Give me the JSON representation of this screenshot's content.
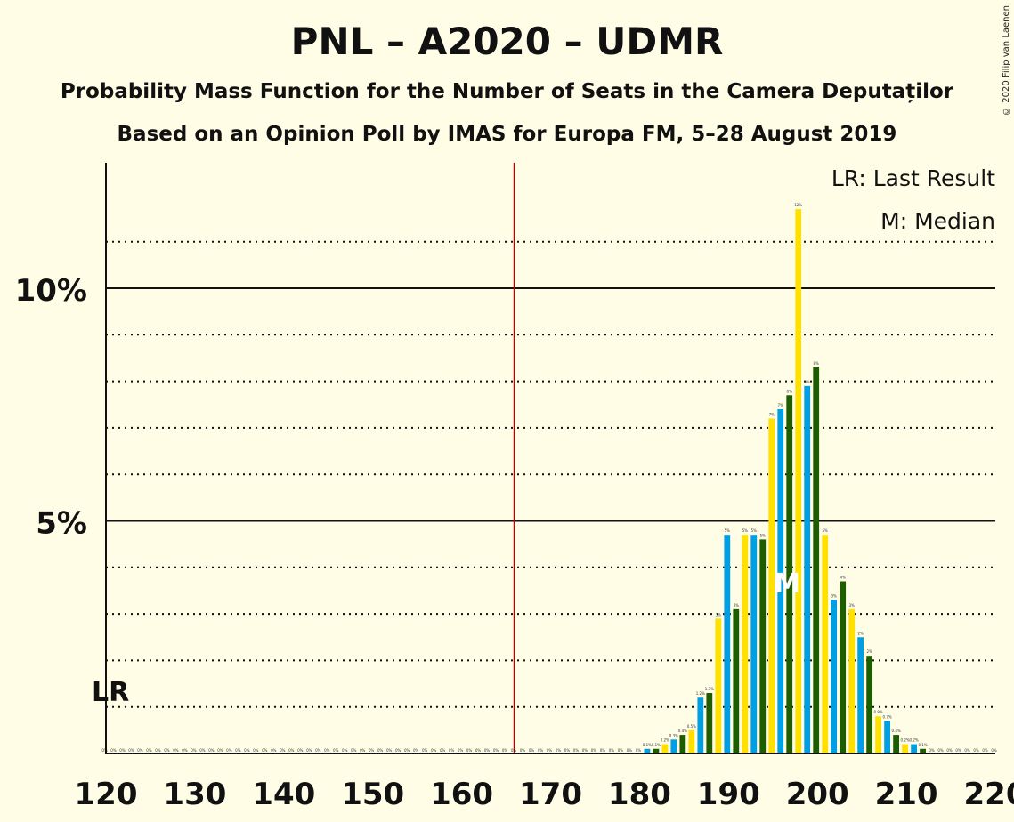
{
  "title": "PNL – A2020 – UDMR",
  "subtitle1": "Probability Mass Function for the Number of Seats in the Camera Deputaților",
  "subtitle2": "Based on an Opinion Poll by IMAS for Europa FM, 5–28 August 2019",
  "copyright": "© 2020 Filip van Laenen",
  "legend": {
    "lr": "LR: Last Result",
    "m": "M: Median"
  },
  "lr_marker": "LR",
  "median_marker": "M",
  "colors": {
    "yellow": "#FFE000",
    "blue": "#009FE3",
    "green": "#1E5C00",
    "lr_line": "#C00000",
    "grid": "#111111"
  },
  "chart_data": {
    "type": "bar",
    "title": "PNL – A2020 – UDMR",
    "xlabel": "",
    "ylabel": "",
    "xlim": [
      120,
      220
    ],
    "ylim": [
      0,
      12.7
    ],
    "x_ticks": [
      "120",
      "130",
      "140",
      "150",
      "160",
      "170",
      "180",
      "190",
      "200",
      "210",
      "220"
    ],
    "y_ticks": [
      "5%",
      "10%"
    ],
    "last_result": 166,
    "median": 198,
    "x": [
      120,
      121,
      122,
      123,
      124,
      125,
      126,
      127,
      128,
      129,
      130,
      131,
      132,
      133,
      134,
      135,
      136,
      137,
      138,
      139,
      140,
      141,
      142,
      143,
      144,
      145,
      146,
      147,
      148,
      149,
      150,
      151,
      152,
      153,
      154,
      155,
      156,
      157,
      158,
      159,
      160,
      161,
      162,
      163,
      164,
      165,
      166,
      167,
      168,
      169,
      170,
      171,
      172,
      173,
      174,
      175,
      176,
      177,
      178,
      179,
      180,
      181,
      182,
      183,
      184,
      185,
      186,
      187,
      188,
      189,
      190,
      191,
      192,
      193,
      194,
      195,
      196,
      197,
      198,
      199,
      200,
      201,
      202,
      203,
      204,
      205,
      206,
      207,
      208,
      209,
      210,
      211,
      212,
      213,
      214,
      215,
      216,
      217,
      218,
      219,
      220
    ],
    "values": [
      0,
      0,
      0,
      0,
      0,
      0,
      0,
      0,
      0,
      0,
      0,
      0,
      0,
      0,
      0,
      0,
      0,
      0,
      0,
      0,
      0,
      0,
      0,
      0,
      0,
      0,
      0,
      0,
      0,
      0,
      0,
      0,
      0,
      0,
      0,
      0,
      0,
      0,
      0,
      0,
      0,
      0,
      0,
      0,
      0,
      0,
      0,
      0,
      0,
      0,
      0,
      0,
      0,
      0,
      0,
      0,
      0,
      0,
      0,
      0,
      0,
      0.1,
      0.1,
      0.2,
      0.3,
      0.4,
      0.5,
      1.2,
      1.3,
      2.9,
      4.7,
      3.1,
      4.7,
      4.7,
      4.6,
      7.2,
      7.4,
      7.7,
      11.7,
      7.9,
      8.3,
      4.7,
      3.3,
      3.7,
      3.1,
      2.5,
      2.1,
      0.8,
      0.7,
      0.4,
      0.2,
      0.2,
      0.1,
      0,
      0,
      0,
      0,
      0,
      0,
      0,
      0
    ],
    "data_labels": [
      "0%",
      "0%",
      "0%",
      "0%",
      "0%",
      "0%",
      "0%",
      "0%",
      "0%",
      "0%",
      "0%",
      "0%",
      "0%",
      "0%",
      "0%",
      "0%",
      "0%",
      "0%",
      "0%",
      "0%",
      "0%",
      "0%",
      "0%",
      "0%",
      "0%",
      "0%",
      "0%",
      "0%",
      "0%",
      "0%",
      "0%",
      "0%",
      "0%",
      "0%",
      "0%",
      "0%",
      "0%",
      "0%",
      "0%",
      "0%",
      "0%",
      "0%",
      "0%",
      "0%",
      "0%",
      "0%",
      "0%",
      "0%",
      "0%",
      "0%",
      "0%",
      "0%",
      "0%",
      "0%",
      "0%",
      "0%",
      "0%",
      "0%",
      "0%",
      "0%",
      "0%",
      "0.1%",
      "0.1%",
      "0.2%",
      "0.3%",
      "0.4%",
      "0.5%",
      "1.2%",
      "1.3%",
      "3%",
      "5%",
      "3%",
      "5%",
      "5%",
      "5%",
      "7%",
      "7%",
      "8%",
      "12%",
      "8%",
      "8%",
      "5%",
      "3%",
      "4%",
      "3%",
      "2%",
      "2%",
      "0.8%",
      "0.7%",
      "0.4%",
      "0.2%",
      "0.2%",
      "0.1%",
      "0%",
      "0%",
      "0%",
      "0%",
      "0%",
      "0%",
      "0%",
      "0%"
    ]
  }
}
